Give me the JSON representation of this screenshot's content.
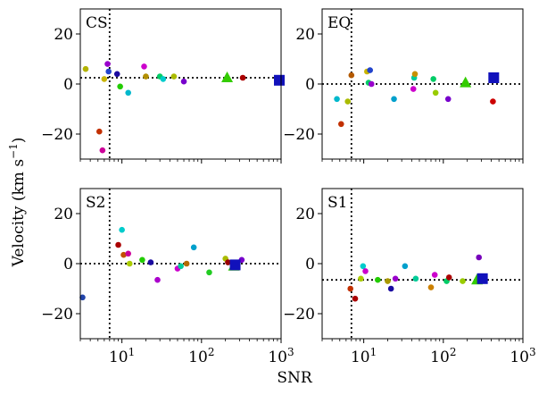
{
  "figure": {
    "ylabel": "Velocity (km s",
    "ylabel_sup": "−1",
    "ylabel_close": ")",
    "xlabel": "SNR"
  },
  "chart_data": [
    {
      "type": "scatter",
      "title": "CS",
      "xscale": "log",
      "xlim": [
        3,
        1000
      ],
      "ylim": [
        -30,
        30
      ],
      "xlabel": "SNR",
      "ylabel": "Velocity (km s−1)",
      "yticks": [
        -20,
        0,
        20
      ],
      "ytick_labels": [
        "−20",
        "0",
        "20"
      ],
      "xtick_labels": [],
      "vline_x": 7,
      "hline_y": 2.5,
      "points": [
        {
          "x": 3.5,
          "y": 6,
          "color": "#b3b300"
        },
        {
          "x": 5.2,
          "y": -19,
          "color": "#c23000"
        },
        {
          "x": 5.7,
          "y": -26.5,
          "color": "#cc0099"
        },
        {
          "x": 6.0,
          "y": 2,
          "color": "#c8b400"
        },
        {
          "x": 6.6,
          "y": 8,
          "color": "#9900cc"
        },
        {
          "x": 6.8,
          "y": 5,
          "color": "#2244cc"
        },
        {
          "x": 8.7,
          "y": 4,
          "color": "#1a0aa0"
        },
        {
          "x": 9.5,
          "y": -1,
          "color": "#22cc00"
        },
        {
          "x": 12.0,
          "y": -3.5,
          "color": "#00b8cc"
        },
        {
          "x": 19.0,
          "y": 7,
          "color": "#cc00cc"
        },
        {
          "x": 20.0,
          "y": 3,
          "color": "#b39000"
        },
        {
          "x": 30.0,
          "y": 3,
          "color": "#00cc66"
        },
        {
          "x": 33.0,
          "y": 2,
          "color": "#00cccc"
        },
        {
          "x": 45.0,
          "y": 3,
          "color": "#aabb00"
        },
        {
          "x": 60.0,
          "y": 1,
          "color": "#7700cc"
        },
        {
          "x": 330.0,
          "y": 2.5,
          "color": "#aa0000"
        }
      ],
      "triangle": {
        "x": 210,
        "y": 2.5,
        "color": "#33cc00"
      },
      "square": {
        "x": 950,
        "y": 1.5,
        "color": "#1111bb"
      }
    },
    {
      "type": "scatter",
      "title": "EQ",
      "xscale": "log",
      "xlim": [
        3,
        1000
      ],
      "ylim": [
        -30,
        30
      ],
      "yticks": [
        -20,
        0,
        20
      ],
      "ytick_labels": [
        "−20",
        "0",
        "20"
      ],
      "xtick_labels": [],
      "vline_x": 7,
      "hline_y": 0,
      "points": [
        {
          "x": 4.6,
          "y": -6,
          "color": "#00b8cc"
        },
        {
          "x": 5.2,
          "y": -16,
          "color": "#c23000"
        },
        {
          "x": 6.3,
          "y": -7,
          "color": "#aabb00"
        },
        {
          "x": 7.0,
          "y": 3.5,
          "color": "#b35900"
        },
        {
          "x": 11.0,
          "y": 5,
          "color": "#c8b400"
        },
        {
          "x": 12.0,
          "y": 5.5,
          "color": "#2244cc"
        },
        {
          "x": 11.5,
          "y": 0.5,
          "color": "#00cc66"
        },
        {
          "x": 12.5,
          "y": 0,
          "color": "#9900cc"
        },
        {
          "x": 24.0,
          "y": -6,
          "color": "#00a0cc"
        },
        {
          "x": 43.0,
          "y": 2.5,
          "color": "#00cc99"
        },
        {
          "x": 44.0,
          "y": 4,
          "color": "#c89000"
        },
        {
          "x": 42.0,
          "y": -2,
          "color": "#cc00cc"
        },
        {
          "x": 75.0,
          "y": 2,
          "color": "#00cc66"
        },
        {
          "x": 80.0,
          "y": -3.5,
          "color": "#99cc00"
        },
        {
          "x": 115.0,
          "y": -6,
          "color": "#7700cc"
        },
        {
          "x": 420.0,
          "y": -7,
          "color": "#cc0000"
        }
      ],
      "triangle": {
        "x": 190,
        "y": 0.5,
        "color": "#33cc00"
      },
      "square": {
        "x": 430,
        "y": 2.5,
        "color": "#1111bb"
      }
    },
    {
      "type": "scatter",
      "title": "S2",
      "xscale": "log",
      "xlim": [
        3,
        1000
      ],
      "ylim": [
        -30,
        30
      ],
      "yticks": [
        -20,
        0,
        20
      ],
      "ytick_labels": [
        "−20",
        "0",
        "20"
      ],
      "xticks": [
        10,
        100,
        1000
      ],
      "xtick_base": "10",
      "xtick_exps": [
        "1",
        "2",
        "3"
      ],
      "vline_x": 7,
      "hline_y": 0,
      "points": [
        {
          "x": 3.2,
          "y": -13.5,
          "color": "#2244aa"
        },
        {
          "x": 9.0,
          "y": 7.5,
          "color": "#aa0000"
        },
        {
          "x": 10.0,
          "y": 13.5,
          "color": "#00cccc"
        },
        {
          "x": 10.5,
          "y": 3.5,
          "color": "#c25000"
        },
        {
          "x": 12.0,
          "y": 4,
          "color": "#cc0099"
        },
        {
          "x": 12.5,
          "y": 0,
          "color": "#aacc00"
        },
        {
          "x": 18.0,
          "y": 1.5,
          "color": "#22cc00"
        },
        {
          "x": 23.0,
          "y": 0.5,
          "color": "#1a0aa0"
        },
        {
          "x": 28.0,
          "y": -6.5,
          "color": "#aa00cc"
        },
        {
          "x": 50.0,
          "y": -2,
          "color": "#cc00cc"
        },
        {
          "x": 55.0,
          "y": -1,
          "color": "#00cc99"
        },
        {
          "x": 65.0,
          "y": 0,
          "color": "#b36b00"
        },
        {
          "x": 80.0,
          "y": 6.5,
          "color": "#00a0cc"
        },
        {
          "x": 125.0,
          "y": -3.5,
          "color": "#22cc22"
        },
        {
          "x": 200.0,
          "y": 2,
          "color": "#aabb00"
        },
        {
          "x": 215.0,
          "y": 0.5,
          "color": "#990000"
        },
        {
          "x": 320.0,
          "y": 1.5,
          "color": "#7700cc"
        }
      ],
      "triangle": {
        "x": 255,
        "y": -1,
        "color": "#33cc00"
      },
      "square": {
        "x": 265,
        "y": -0.5,
        "color": "#1111bb"
      }
    },
    {
      "type": "scatter",
      "title": "S1",
      "xscale": "log",
      "xlim": [
        3,
        1000
      ],
      "ylim": [
        -30,
        30
      ],
      "yticks": [
        -20,
        0,
        20
      ],
      "ytick_labels": [
        "−20",
        "0",
        "20"
      ],
      "xticks": [
        10,
        100,
        1000
      ],
      "xtick_base": "10",
      "xtick_exps": [
        "1",
        "2",
        "3"
      ],
      "vline_x": 7,
      "hline_y": -6.5,
      "points": [
        {
          "x": 6.8,
          "y": -10,
          "color": "#c23000"
        },
        {
          "x": 7.8,
          "y": -14,
          "color": "#aa0000"
        },
        {
          "x": 9.2,
          "y": -6,
          "color": "#aacc00"
        },
        {
          "x": 9.8,
          "y": -1,
          "color": "#00cccc"
        },
        {
          "x": 10.5,
          "y": -3,
          "color": "#cc00cc"
        },
        {
          "x": 15.0,
          "y": -6.5,
          "color": "#22cc00"
        },
        {
          "x": 20.0,
          "y": -7,
          "color": "#aa9900"
        },
        {
          "x": 22.0,
          "y": -10,
          "color": "#1a0aa0"
        },
        {
          "x": 25.0,
          "y": -6,
          "color": "#9900cc"
        },
        {
          "x": 33.0,
          "y": -1,
          "color": "#00a0cc"
        },
        {
          "x": 45.0,
          "y": -6,
          "color": "#00cc99"
        },
        {
          "x": 70.0,
          "y": -9.5,
          "color": "#cc8000"
        },
        {
          "x": 78.0,
          "y": -4.5,
          "color": "#cc00cc"
        },
        {
          "x": 110.0,
          "y": -7,
          "color": "#00cc66"
        },
        {
          "x": 118.0,
          "y": -5.5,
          "color": "#aa0000"
        },
        {
          "x": 175.0,
          "y": -7,
          "color": "#99cc00"
        },
        {
          "x": 280.0,
          "y": 2.5,
          "color": "#7700bb"
        }
      ],
      "triangle": {
        "x": 265,
        "y": -6.5,
        "color": "#33cc00"
      },
      "square": {
        "x": 310,
        "y": -6,
        "color": "#1111bb"
      }
    }
  ]
}
